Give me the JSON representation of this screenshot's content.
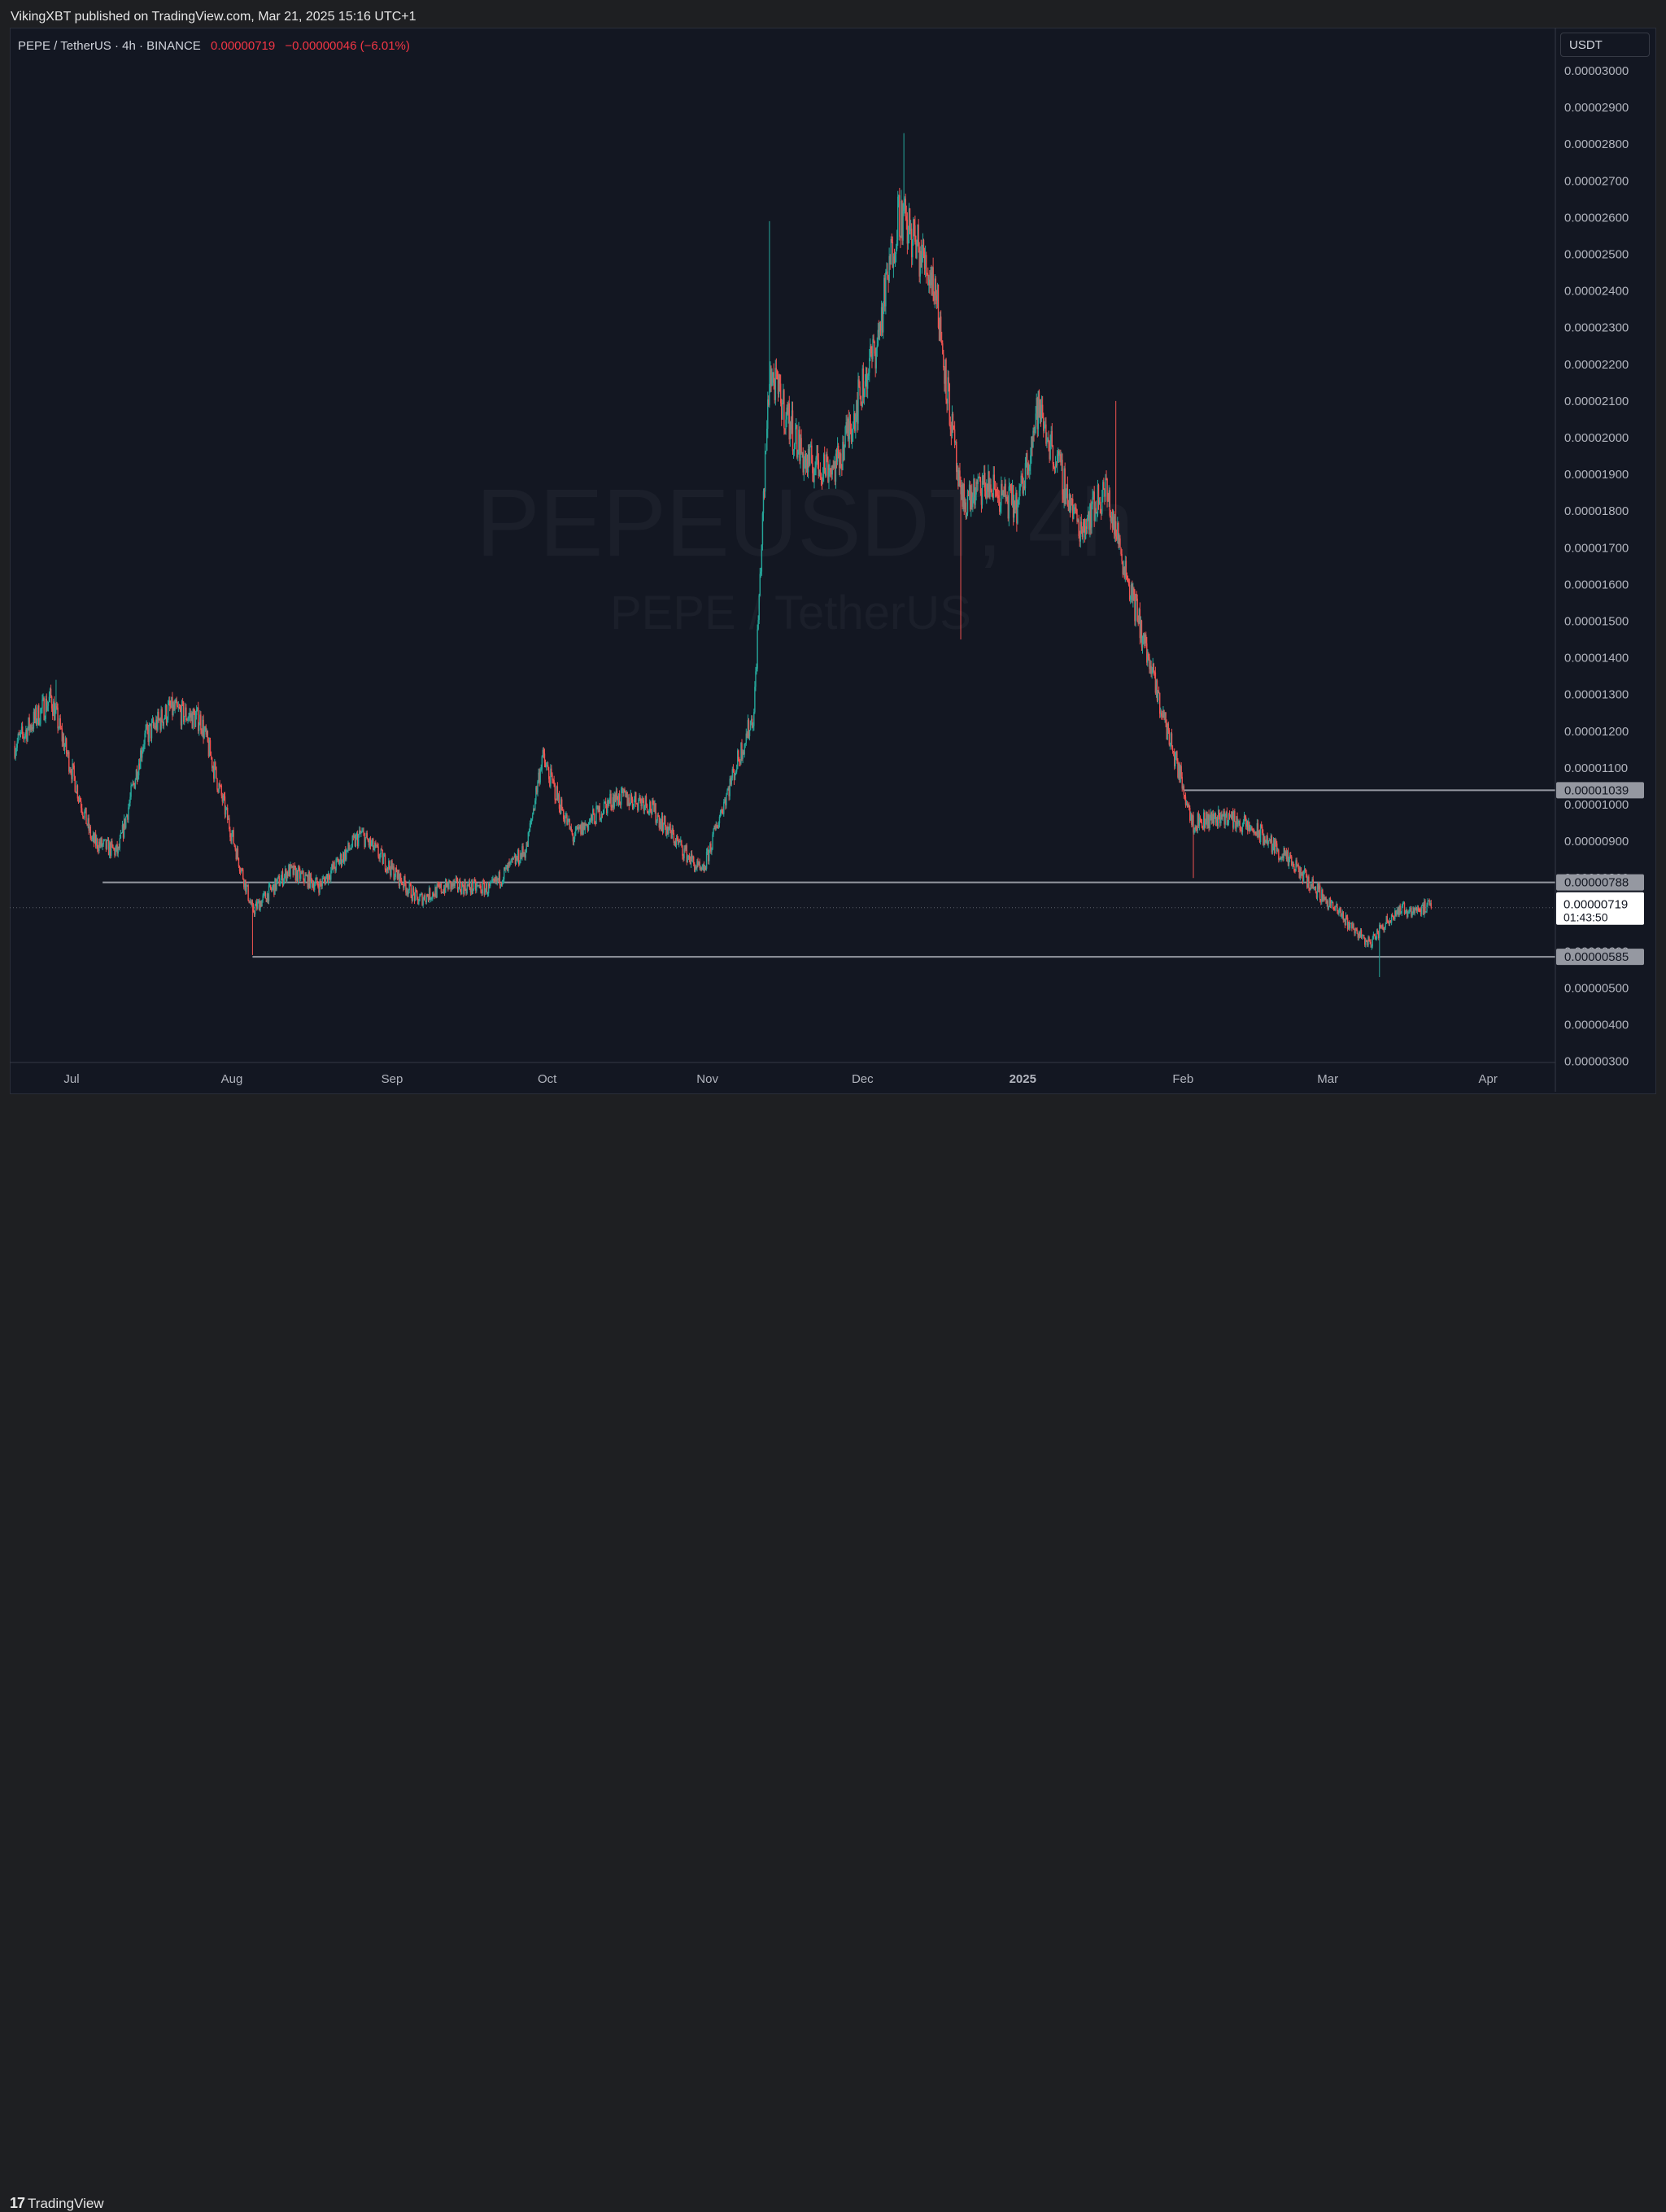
{
  "header": {
    "publisher_line": "VikingXBT published on TradingView.com, Mar 21, 2025 15:16 UTC+1"
  },
  "legend": {
    "symbol_line": "PEPE / TetherUS · 4h · BINANCE",
    "last_price": "0.00000719",
    "change": "−0.00000046 (−6.01%)"
  },
  "currency_selector": "USDT",
  "watermark": {
    "symbol": "PEPEUSDT, 4h",
    "description": "PEPE / TetherUS"
  },
  "footer": {
    "brand": "TradingView",
    "brand_mark": "17"
  },
  "colors": {
    "up": "#26a69a",
    "down": "#ef5350",
    "level_line": "#9598a1",
    "background": "#131722"
  },
  "chart_data": {
    "type": "candlestick",
    "symbol": "PEPE / TetherUS",
    "interval": "4h",
    "exchange": "BINANCE",
    "currency": "USDT",
    "ylim": [
      3e-06,
      3.03e-05
    ],
    "y_ticks": [
      "0.00003000",
      "0.00002900",
      "0.00002800",
      "0.00002700",
      "0.00002600",
      "0.00002500",
      "0.00002400",
      "0.00002300",
      "0.00002200",
      "0.00002100",
      "0.00002000",
      "0.00001900",
      "0.00001800",
      "0.00001700",
      "0.00001600",
      "0.00001500",
      "0.00001400",
      "0.00001300",
      "0.00001200",
      "0.00001100",
      "0.00001000",
      "0.00000900",
      "0.00000800",
      "0.00000700",
      "0.00000600",
      "0.00000500",
      "0.00000400",
      "0.00000300"
    ],
    "x_ticks": [
      {
        "label": "Jul",
        "date": "2024-07-01",
        "bold": false
      },
      {
        "label": "Aug",
        "date": "2024-08-01",
        "bold": false
      },
      {
        "label": "Sep",
        "date": "2024-09-01",
        "bold": false
      },
      {
        "label": "Oct",
        "date": "2024-10-01",
        "bold": false
      },
      {
        "label": "Nov",
        "date": "2024-11-01",
        "bold": false
      },
      {
        "label": "Dec",
        "date": "2024-12-01",
        "bold": false
      },
      {
        "label": "2025",
        "date": "2025-01-01",
        "bold": true
      },
      {
        "label": "Feb",
        "date": "2025-02-01",
        "bold": false
      },
      {
        "label": "Mar",
        "date": "2025-03-01",
        "bold": false
      },
      {
        "label": "Apr",
        "date": "2025-04-01",
        "bold": false
      }
    ],
    "price_path": [
      {
        "date": "2024-06-20",
        "price": 1.16e-05
      },
      {
        "date": "2024-06-27",
        "price": 1.29e-05
      },
      {
        "date": "2024-07-05",
        "price": 9e-06
      },
      {
        "date": "2024-07-10",
        "price": 8.7e-06
      },
      {
        "date": "2024-07-15",
        "price": 1.18e-05
      },
      {
        "date": "2024-07-20",
        "price": 1.26e-05
      },
      {
        "date": "2024-07-26",
        "price": 1.23e-05
      },
      {
        "date": "2024-08-05",
        "price": 7.1e-06
      },
      {
        "date": "2024-08-12",
        "price": 8.2e-06
      },
      {
        "date": "2024-08-18",
        "price": 7.8e-06
      },
      {
        "date": "2024-08-26",
        "price": 9.2e-06
      },
      {
        "date": "2024-09-06",
        "price": 7.4e-06
      },
      {
        "date": "2024-09-12",
        "price": 7.8e-06
      },
      {
        "date": "2024-09-20",
        "price": 7.7e-06
      },
      {
        "date": "2024-09-27",
        "price": 8.8e-06
      },
      {
        "date": "2024-09-30",
        "price": 1.13e-05
      },
      {
        "date": "2024-10-06",
        "price": 9.1e-06
      },
      {
        "date": "2024-10-14",
        "price": 1.02e-05
      },
      {
        "date": "2024-10-20",
        "price": 1.01e-05
      },
      {
        "date": "2024-10-31",
        "price": 8.1e-06
      },
      {
        "date": "2024-11-04",
        "price": 1e-05
      },
      {
        "date": "2024-11-10",
        "price": 1.25e-05
      },
      {
        "date": "2024-11-13",
        "price": 2.18e-05
      },
      {
        "date": "2024-11-20",
        "price": 1.93e-05
      },
      {
        "date": "2024-11-26",
        "price": 1.92e-05
      },
      {
        "date": "2024-12-04",
        "price": 2.27e-05
      },
      {
        "date": "2024-12-08",
        "price": 2.62e-05
      },
      {
        "date": "2024-12-15",
        "price": 2.42e-05
      },
      {
        "date": "2024-12-20",
        "price": 1.82e-05
      },
      {
        "date": "2024-12-25",
        "price": 1.87e-05
      },
      {
        "date": "2024-12-31",
        "price": 1.81e-05
      },
      {
        "date": "2025-01-04",
        "price": 2.08e-05
      },
      {
        "date": "2025-01-12",
        "price": 1.75e-05
      },
      {
        "date": "2025-01-17",
        "price": 1.86e-05
      },
      {
        "date": "2025-01-22",
        "price": 1.58e-05
      },
      {
        "date": "2025-01-27",
        "price": 1.3e-05
      },
      {
        "date": "2025-02-03",
        "price": 9.5e-06
      },
      {
        "date": "2025-02-09",
        "price": 9.7e-06
      },
      {
        "date": "2025-02-16",
        "price": 9.2e-06
      },
      {
        "date": "2025-02-24",
        "price": 8.1e-06
      },
      {
        "date": "2025-03-02",
        "price": 7.2e-06
      },
      {
        "date": "2025-03-09",
        "price": 6.2e-06
      },
      {
        "date": "2025-03-14",
        "price": 7.1e-06
      },
      {
        "date": "2025-03-21",
        "price": 7.2e-06
      }
    ],
    "notable_extremes": [
      {
        "date": "2024-06-28",
        "high": 1.34e-05
      },
      {
        "date": "2024-08-05",
        "low": 5.9e-06
      },
      {
        "date": "2024-11-13",
        "high": 2.59e-05
      },
      {
        "date": "2024-12-09",
        "high": 2.83e-05
      },
      {
        "date": "2024-12-20",
        "low": 1.45e-05
      },
      {
        "date": "2025-01-19",
        "high": 2.1e-05
      },
      {
        "date": "2025-02-03",
        "low": 8e-06
      },
      {
        "date": "2025-03-11",
        "low": 5.3e-06
      }
    ],
    "horizontal_levels": [
      {
        "price": 1.039e-05,
        "label": "0.00001039",
        "start": "2025-02-01"
      },
      {
        "price": 7.88e-06,
        "label": "0.00000788",
        "start": "2024-07-07"
      },
      {
        "price": 5.85e-06,
        "label": "0.00000585",
        "start": "2024-08-05"
      }
    ],
    "current_price": {
      "price": 7.19e-06,
      "label": "0.00000719",
      "countdown": "01:43:50"
    }
  }
}
